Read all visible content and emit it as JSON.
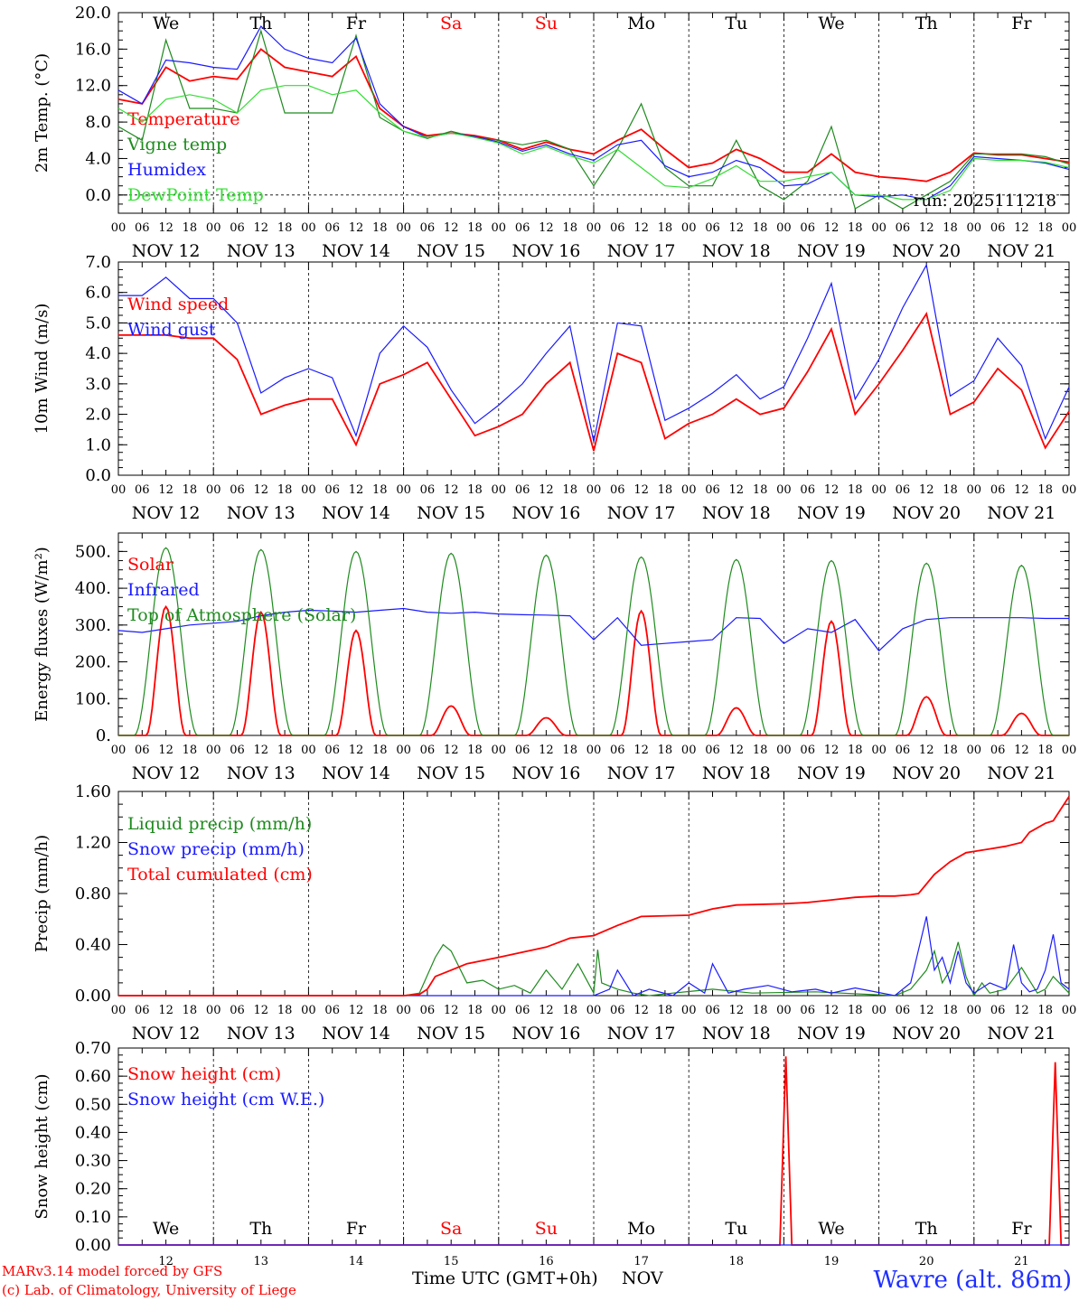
{
  "colors": {
    "red": "#ff0000",
    "green": "#1e8a1e",
    "blue": "#1a1aff",
    "lightgreen": "#33dd33",
    "black": "#000000",
    "weekend": "#ff0000"
  },
  "day_abbrev": [
    {
      "label": "We",
      "weekend": false
    },
    {
      "label": "Th",
      "weekend": false
    },
    {
      "label": "Fr",
      "weekend": false
    },
    {
      "label": "Sa",
      "weekend": true
    },
    {
      "label": "Su",
      "weekend": true
    },
    {
      "label": "Mo",
      "weekend": false
    },
    {
      "label": "Tu",
      "weekend": false
    },
    {
      "label": "We",
      "weekend": false
    },
    {
      "label": "Th",
      "weekend": false
    },
    {
      "label": "Fr",
      "weekend": false
    }
  ],
  "date_labels": [
    "NOV 12",
    "NOV 13",
    "NOV 14",
    "NOV 15",
    "NOV 16",
    "NOV 17",
    "NOV 18",
    "NOV 19",
    "NOV 20",
    "NOV 21"
  ],
  "day_numbers": [
    "12",
    "13",
    "14",
    "15",
    "16",
    "17",
    "18",
    "19",
    "20",
    "21"
  ],
  "hour_ticks": [
    "00",
    "06",
    "12",
    "18"
  ],
  "hour_end": "00",
  "run_label": "run: 2025111218",
  "footer": {
    "credit_line1": "MARv3.14 model forced by GFS",
    "credit_line2": "(c) Lab. of Climatology, University of Liege",
    "x_axis_title": "Time UTC (GMT+0h)",
    "x_axis_month": "NOV",
    "station": "Wavre (alt. 86m)"
  },
  "chart_data": [
    {
      "type": "line",
      "ylabel": "2m Temp. (°C)",
      "ylim": [
        -2,
        20
      ],
      "yticks": [
        "20.0",
        "16.0",
        "12.0",
        "8.0",
        "4.0",
        "0.0"
      ],
      "ytick_values": [
        20,
        16,
        12,
        8,
        4,
        0
      ],
      "hline": 0,
      "x_unit": "hours from NOV 12 00 UTC",
      "series": [
        {
          "name": "Temperature",
          "color": "red",
          "x": [
            0,
            6,
            12,
            18,
            24,
            30,
            36,
            42,
            48,
            54,
            60,
            66,
            72,
            78,
            84,
            90,
            96,
            102,
            108,
            114,
            120,
            126,
            132,
            138,
            144,
            150,
            156,
            162,
            168,
            174,
            180,
            186,
            192,
            198,
            204,
            210,
            216,
            222,
            228,
            234,
            240
          ],
          "values": [
            10.5,
            10,
            14,
            12.5,
            13,
            12.7,
            16,
            14,
            13.5,
            13,
            15.2,
            9.5,
            7.5,
            6.5,
            6.8,
            6.5,
            6,
            5,
            5.8,
            5,
            4.5,
            6,
            7.2,
            5,
            3,
            3.5,
            5,
            4,
            2.5,
            2.5,
            4.5,
            2.5,
            2,
            1.8,
            1.5,
            2.5,
            4.6,
            4.4,
            4.4,
            4,
            3.6
          ]
        },
        {
          "name": "Vigne temp",
          "color": "green",
          "x": [
            0,
            6,
            12,
            18,
            24,
            30,
            36,
            42,
            48,
            54,
            60,
            66,
            72,
            78,
            84,
            90,
            96,
            102,
            108,
            114,
            120,
            126,
            132,
            138,
            144,
            150,
            156,
            162,
            168,
            174,
            180,
            186,
            192,
            198,
            204,
            210,
            216,
            222,
            228,
            234,
            240
          ],
          "values": [
            7.5,
            6,
            17,
            9.5,
            9.5,
            9,
            18,
            9,
            9,
            9,
            17.5,
            8.5,
            7,
            6.2,
            7,
            6.3,
            6,
            5.5,
            6,
            5,
            1,
            5,
            10,
            3,
            1,
            1,
            6,
            1,
            -0.5,
            1.5,
            7.5,
            -1.5,
            0,
            -1.5,
            0,
            1.5,
            4.5,
            4.5,
            4.5,
            4.2,
            3.4
          ]
        },
        {
          "name": "Humidex",
          "color": "blue",
          "x": [
            0,
            6,
            12,
            18,
            24,
            30,
            36,
            42,
            48,
            54,
            60,
            66,
            72,
            78,
            84,
            90,
            96,
            102,
            108,
            114,
            120,
            126,
            132,
            138,
            144,
            150,
            156,
            162,
            168,
            174,
            180,
            186,
            192,
            198,
            204,
            210,
            216,
            222,
            228,
            234,
            240
          ],
          "values": [
            11.5,
            10,
            14.8,
            14.5,
            14,
            13.8,
            18.5,
            16,
            15,
            14.5,
            17.2,
            10,
            7.5,
            6.3,
            6.8,
            6.4,
            5.8,
            4.8,
            5.5,
            4.5,
            3.8,
            5.5,
            6,
            3.2,
            2,
            2.5,
            3.8,
            3,
            1,
            1.2,
            2.5,
            0,
            -0.2,
            0,
            -0.5,
            1,
            4.2,
            4,
            3.8,
            3.5,
            2.8
          ]
        },
        {
          "name": "DewPoint Temp",
          "color": "lightgreen",
          "x": [
            0,
            6,
            12,
            18,
            24,
            30,
            36,
            42,
            48,
            54,
            60,
            66,
            72,
            78,
            84,
            90,
            96,
            102,
            108,
            114,
            120,
            126,
            132,
            138,
            144,
            150,
            156,
            162,
            168,
            174,
            180,
            186,
            192,
            198,
            204,
            210,
            216,
            222,
            228,
            234,
            240
          ],
          "values": [
            9.5,
            8,
            10.5,
            11,
            10.5,
            9,
            11.5,
            12,
            12,
            11,
            11.5,
            9,
            7,
            6.3,
            6.8,
            6.3,
            5.7,
            4.5,
            5.3,
            4.3,
            3.5,
            5,
            3,
            1,
            0.8,
            1.8,
            3.2,
            1.5,
            1.5,
            2,
            2.5,
            0,
            0,
            -0.5,
            -0.5,
            0.5,
            4,
            3.8,
            3.8,
            3.6,
            3
          ]
        }
      ]
    },
    {
      "type": "line",
      "ylabel": "10m Wind (m/s)",
      "ylim": [
        0,
        7
      ],
      "yticks": [
        "7.0",
        "6.0",
        "5.0",
        "4.0",
        "3.0",
        "2.0",
        "1.0",
        "0.0"
      ],
      "ytick_values": [
        7,
        6,
        5,
        4,
        3,
        2,
        1,
        0
      ],
      "hline": 5,
      "series": [
        {
          "name": "Wind speed",
          "color": "red",
          "x": [
            0,
            6,
            12,
            18,
            24,
            30,
            36,
            42,
            48,
            54,
            60,
            66,
            72,
            78,
            84,
            90,
            96,
            102,
            108,
            114,
            120,
            126,
            132,
            138,
            144,
            150,
            156,
            162,
            168,
            174,
            180,
            186,
            192,
            198,
            204,
            210,
            216,
            222,
            228,
            234,
            240
          ],
          "values": [
            4.6,
            4.6,
            4.6,
            4.5,
            4.5,
            3.8,
            2,
            2.3,
            2.5,
            2.5,
            1,
            3,
            3.3,
            3.7,
            2.5,
            1.3,
            1.6,
            2,
            3,
            3.7,
            0.8,
            4,
            3.7,
            1.2,
            1.7,
            2,
            2.5,
            2,
            2.2,
            3.4,
            4.8,
            2,
            3,
            4.1,
            5.3,
            2,
            2.4,
            3.5,
            2.8,
            0.9,
            2.1
          ]
        },
        {
          "name": "Wind gust",
          "color": "blue",
          "x": [
            0,
            6,
            12,
            18,
            24,
            30,
            36,
            42,
            48,
            54,
            60,
            66,
            72,
            78,
            84,
            90,
            96,
            102,
            108,
            114,
            120,
            126,
            132,
            138,
            144,
            150,
            156,
            162,
            168,
            174,
            180,
            186,
            192,
            198,
            204,
            210,
            216,
            222,
            228,
            234,
            240
          ],
          "values": [
            5.9,
            5.9,
            6.5,
            5.8,
            5.8,
            5,
            2.7,
            3.2,
            3.5,
            3.2,
            1.3,
            4,
            4.9,
            4.2,
            2.8,
            1.7,
            2.3,
            3,
            4,
            4.9,
            1.1,
            5,
            4.9,
            1.8,
            2.2,
            2.7,
            3.3,
            2.5,
            2.9,
            4.5,
            6.3,
            2.5,
            3.8,
            5.5,
            6.9,
            2.6,
            3.1,
            4.5,
            3.6,
            1.2,
            2.9
          ]
        }
      ]
    },
    {
      "type": "line",
      "ylabel": "Energy fluxes (W/m²)",
      "ylim": [
        0,
        550
      ],
      "yticks": [
        "500.",
        "400.",
        "300.",
        "200.",
        "100.",
        "0."
      ],
      "ytick_values": [
        500,
        400,
        300,
        200,
        100,
        0
      ],
      "series": [
        {
          "name": "Solar",
          "color": "red",
          "peak_hours": [
            12,
            36,
            60,
            84,
            108,
            132,
            156,
            180,
            204,
            228
          ],
          "peaks": [
            350,
            335,
            285,
            80,
            48,
            338,
            75,
            310,
            105,
            60
          ]
        },
        {
          "name": "Infrared",
          "color": "blue",
          "x": [
            0,
            6,
            12,
            18,
            24,
            30,
            36,
            42,
            48,
            54,
            60,
            66,
            72,
            78,
            84,
            90,
            96,
            102,
            108,
            114,
            120,
            126,
            132,
            138,
            144,
            150,
            156,
            162,
            168,
            174,
            180,
            186,
            192,
            198,
            204,
            210,
            216,
            222,
            228,
            234,
            240
          ],
          "values": [
            285,
            280,
            290,
            300,
            305,
            310,
            325,
            335,
            340,
            338,
            335,
            340,
            345,
            335,
            332,
            335,
            330,
            328,
            327,
            325,
            260,
            320,
            245,
            250,
            255,
            260,
            320,
            318,
            250,
            290,
            280,
            315,
            230,
            290,
            315,
            320,
            320,
            320,
            320,
            318,
            318
          ]
        },
        {
          "name": "Top of Atmosphere (Solar)",
          "color": "green",
          "peak_hours": [
            12,
            36,
            60,
            84,
            108,
            132,
            156,
            180,
            204,
            228
          ],
          "peaks": [
            510,
            505,
            500,
            495,
            490,
            485,
            478,
            475,
            468,
            462
          ]
        }
      ]
    },
    {
      "type": "line",
      "ylabel": "Precip (mm/h)",
      "ylim": [
        0,
        1.6
      ],
      "yticks": [
        "1.60",
        "1.20",
        "0.80",
        "0.40",
        "0.00"
      ],
      "ytick_values": [
        1.6,
        1.2,
        0.8,
        0.4,
        0
      ],
      "series": [
        {
          "name": "Liquid precip (mm/h)",
          "color": "green",
          "x": [
            0,
            72,
            76,
            80,
            82,
            84,
            88,
            92,
            96,
            100,
            104,
            108,
            112,
            116,
            120,
            121,
            122,
            126,
            130,
            134,
            140,
            150,
            160,
            176,
            196,
            200,
            204,
            206,
            208,
            210,
            212,
            214,
            216,
            218,
            220,
            224,
            228,
            232,
            234,
            236,
            240
          ],
          "values": [
            0,
            0,
            0.02,
            0.3,
            0.4,
            0.35,
            0.1,
            0.12,
            0.05,
            0.08,
            0.02,
            0.2,
            0.05,
            0.25,
            0.02,
            0.36,
            0.1,
            0.05,
            0.02,
            0,
            0.02,
            0.05,
            0.02,
            0.03,
            0,
            0.05,
            0.2,
            0.35,
            0.1,
            0.2,
            0.42,
            0.15,
            0,
            0.1,
            0.02,
            0.05,
            0.22,
            0.02,
            0.05,
            0.15,
            0.02
          ]
        },
        {
          "name": "Snow precip (mm/h)",
          "color": "blue",
          "x": [
            0,
            120,
            124,
            126,
            128,
            130,
            134,
            140,
            144,
            148,
            150,
            154,
            158,
            164,
            170,
            176,
            180,
            186,
            196,
            200,
            204,
            206,
            208,
            210,
            212,
            214,
            216,
            220,
            224,
            226,
            228,
            230,
            232,
            234,
            236,
            238,
            240
          ],
          "values": [
            0,
            0,
            0.05,
            0.2,
            0.1,
            0,
            0.05,
            0,
            0.1,
            0.02,
            0.25,
            0.02,
            0.05,
            0.08,
            0.03,
            0.05,
            0.02,
            0.06,
            0,
            0.1,
            0.62,
            0.2,
            0.3,
            0.1,
            0.35,
            0.1,
            0.02,
            0.1,
            0.05,
            0.4,
            0.1,
            0.03,
            0.05,
            0.2,
            0.48,
            0.1,
            0.05
          ]
        },
        {
          "name": "Total cumulated (cm)",
          "color": "red",
          "x": [
            0,
            72,
            76,
            78,
            80,
            84,
            88,
            96,
            108,
            114,
            120,
            126,
            132,
            144,
            150,
            156,
            168,
            174,
            180,
            186,
            192,
            196,
            200,
            202,
            206,
            210,
            214,
            216,
            220,
            224,
            228,
            230,
            234,
            236,
            240
          ],
          "values": [
            0,
            0,
            0.01,
            0.05,
            0.15,
            0.2,
            0.25,
            0.3,
            0.38,
            0.45,
            0.47,
            0.55,
            0.62,
            0.63,
            0.68,
            0.71,
            0.72,
            0.73,
            0.75,
            0.77,
            0.78,
            0.78,
            0.79,
            0.8,
            0.95,
            1.05,
            1.12,
            1.13,
            1.15,
            1.17,
            1.2,
            1.28,
            1.35,
            1.37,
            1.56
          ]
        }
      ]
    },
    {
      "type": "line",
      "ylabel": "Snow height (cm)",
      "ylim": [
        0,
        0.7
      ],
      "yticks": [
        "0.70",
        "0.60",
        "0.50",
        "0.40",
        "0.30",
        "0.20",
        "0.10",
        "0.00"
      ],
      "ytick_values": [
        0.7,
        0.6,
        0.5,
        0.4,
        0.3,
        0.2,
        0.1,
        0
      ],
      "series": [
        {
          "name": "Snow height (cm)",
          "color": "red",
          "x": [
            0,
            167,
            168.5,
            170,
            235,
            236.5,
            238,
            240
          ],
          "values": [
            0,
            0,
            0.67,
            0,
            0,
            0.65,
            0,
            0
          ]
        },
        {
          "name": "Snow height (cm W.E.)",
          "color": "blue",
          "x": [
            0,
            240
          ],
          "values": [
            0,
            0
          ]
        }
      ]
    }
  ]
}
